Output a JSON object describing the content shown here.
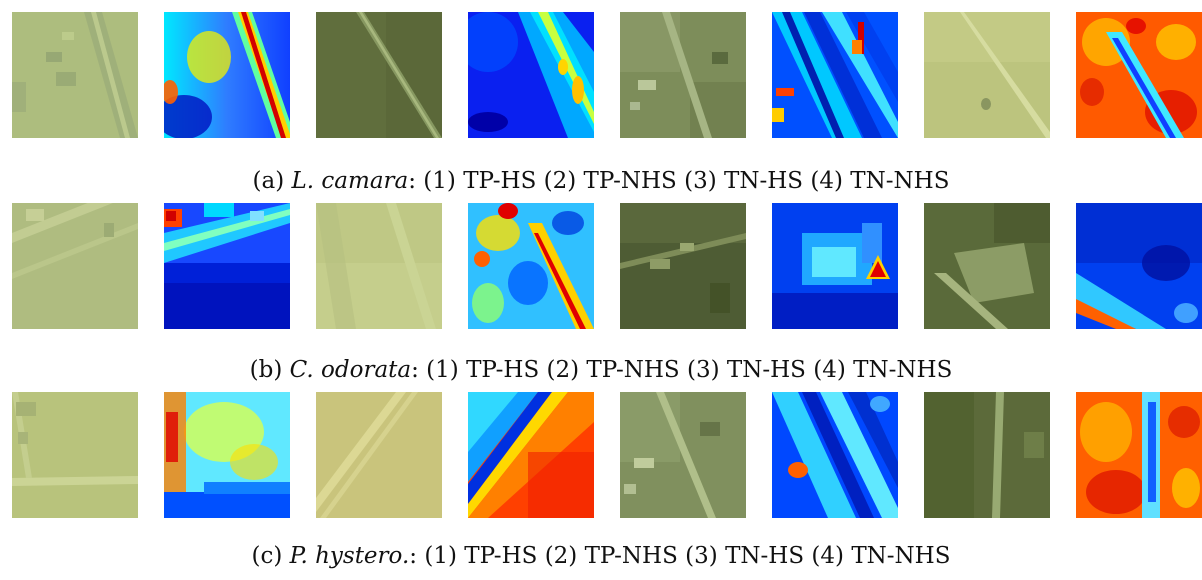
{
  "figure": {
    "rows": [
      {
        "label": "(a)",
        "species": "L. camara",
        "suffix": ": (1) TP-HS (2) TP-NHS (3) TN-HS (4) TN-NHS",
        "images": [
          {
            "kind": "satellite",
            "tone": "light-green"
          },
          {
            "kind": "heatmap",
            "colormap": "jet",
            "feature": "diagonal red band"
          },
          {
            "kind": "satellite",
            "tone": "dark-green"
          },
          {
            "kind": "heatmap",
            "colormap": "jet",
            "feature": "diagonal yellow band"
          },
          {
            "kind": "satellite",
            "tone": "grey-green"
          },
          {
            "kind": "heatmap",
            "colormap": "jet",
            "feature": "striped blue with red spots"
          },
          {
            "kind": "satellite",
            "tone": "yellow-green"
          },
          {
            "kind": "heatmap",
            "colormap": "jet",
            "feature": "mostly red/orange with blue diagonal"
          }
        ]
      },
      {
        "label": "(b)",
        "species": "C. odorata",
        "suffix": ": (1) TP-HS (2) TP-NHS (3) TN-HS (4) TN-NHS",
        "images": [
          {
            "kind": "satellite",
            "tone": "light-green"
          },
          {
            "kind": "heatmap",
            "colormap": "jet",
            "feature": "mostly blue, cyan upper band"
          },
          {
            "kind": "satellite",
            "tone": "yellow-green"
          },
          {
            "kind": "heatmap",
            "colormap": "jet",
            "feature": "mixed cyan with red diagonal"
          },
          {
            "kind": "satellite",
            "tone": "dark-green"
          },
          {
            "kind": "heatmap",
            "colormap": "jet",
            "feature": "blue with cyan square and red spot"
          },
          {
            "kind": "satellite",
            "tone": "dark-green"
          },
          {
            "kind": "heatmap",
            "colormap": "jet",
            "feature": "dark blue with cyan diagonal"
          }
        ]
      },
      {
        "label": "(c)",
        "species": "P. hystero.",
        "suffix": ": (1) TP-HS (2) TP-NHS (3) TN-HS (4) TN-NHS",
        "images": [
          {
            "kind": "satellite",
            "tone": "yellow-green"
          },
          {
            "kind": "heatmap",
            "colormap": "jet",
            "feature": "cyan/yellow with red left edge"
          },
          {
            "kind": "satellite",
            "tone": "yellow"
          },
          {
            "kind": "heatmap",
            "colormap": "jet",
            "feature": "blue diagonal then red lower-right"
          },
          {
            "kind": "satellite",
            "tone": "grey-green"
          },
          {
            "kind": "heatmap",
            "colormap": "jet",
            "feature": "blue striped"
          },
          {
            "kind": "satellite",
            "tone": "dark-green"
          },
          {
            "kind": "heatmap",
            "colormap": "jet",
            "feature": "red/orange with cyan vertical band"
          }
        ]
      }
    ]
  },
  "colors": {
    "jet_dark_blue": "#00008f",
    "jet_blue": "#0040ff",
    "jet_cyan": "#00e0ff",
    "jet_yellow": "#ffef00",
    "jet_red": "#e00000",
    "light_green": "#a8b878",
    "yellow_green": "#bcc27a",
    "dark_green": "#5a6a38",
    "grey_green": "#7f8f5c"
  }
}
